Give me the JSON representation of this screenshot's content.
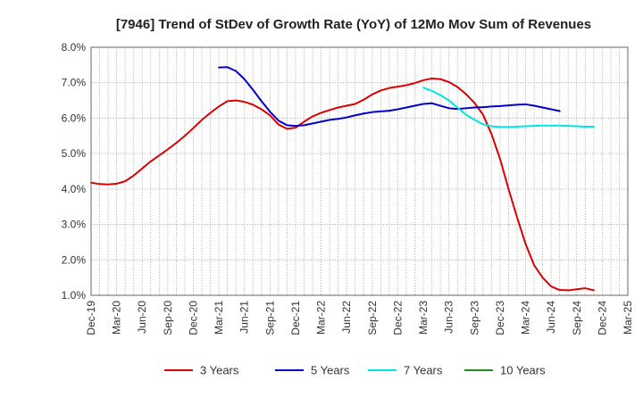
{
  "chart_data": {
    "type": "line",
    "title": "[7946]  Trend of StDev of Growth Rate (YoY) of 12Mo Mov Sum of Revenues",
    "xlabel": "",
    "ylabel": "",
    "ylim": [
      1.0,
      8.0
    ],
    "yticks": [
      "1.0%",
      "2.0%",
      "3.0%",
      "4.0%",
      "5.0%",
      "6.0%",
      "7.0%",
      "8.0%"
    ],
    "ytick_values": [
      1,
      2,
      3,
      4,
      5,
      6,
      7,
      8
    ],
    "xticks": [
      "Dec-19",
      "Mar-20",
      "Jun-20",
      "Sep-20",
      "Dec-20",
      "Mar-21",
      "Jun-21",
      "Sep-21",
      "Dec-21",
      "Mar-22",
      "Jun-22",
      "Sep-22",
      "Dec-22",
      "Mar-23",
      "Jun-23",
      "Sep-23",
      "Dec-23",
      "Mar-24",
      "Jun-24",
      "Sep-24",
      "Dec-24",
      "Mar-25"
    ],
    "x_count": 64,
    "grid": true,
    "legend_position": "bottom",
    "series": [
      {
        "name": "3 Years",
        "color": "#dd0000",
        "start": 0,
        "values": [
          4.18,
          4.14,
          4.13,
          4.15,
          4.22,
          4.38,
          4.58,
          4.78,
          4.95,
          5.12,
          5.3,
          5.5,
          5.72,
          5.95,
          6.15,
          6.33,
          6.48,
          6.5,
          6.46,
          6.38,
          6.25,
          6.08,
          5.82,
          5.7,
          5.73,
          5.9,
          6.05,
          6.15,
          6.23,
          6.3,
          6.35,
          6.4,
          6.52,
          6.67,
          6.78,
          6.85,
          6.89,
          6.93,
          6.99,
          7.07,
          7.12,
          7.1,
          7.02,
          6.88,
          6.68,
          6.43,
          6.1,
          5.55,
          4.85,
          4.0,
          3.2,
          2.45,
          1.85,
          1.5,
          1.25,
          1.15,
          1.14,
          1.17,
          1.2,
          1.14
        ]
      },
      {
        "name": "5 Years",
        "color": "#0000cc",
        "start": 15,
        "values": [
          7.43,
          7.44,
          7.33,
          7.1,
          6.8,
          6.48,
          6.18,
          5.93,
          5.8,
          5.78,
          5.8,
          5.85,
          5.9,
          5.95,
          5.98,
          6.02,
          6.08,
          6.13,
          6.17,
          6.19,
          6.21,
          6.25,
          6.3,
          6.35,
          6.4,
          6.42,
          6.35,
          6.28,
          6.26,
          6.28,
          6.3,
          6.31,
          6.33,
          6.34,
          6.36,
          6.38,
          6.39,
          6.35,
          6.3,
          6.25,
          6.2
        ]
      },
      {
        "name": "7 Years",
        "color": "#00e5e5",
        "start": 39,
        "values": [
          6.86,
          6.77,
          6.65,
          6.5,
          6.3,
          6.1,
          5.95,
          5.83,
          5.77,
          5.75,
          5.75,
          5.76,
          5.77,
          5.78,
          5.79,
          5.79,
          5.79,
          5.78,
          5.77,
          5.76,
          5.76
        ]
      },
      {
        "name": "10 Years",
        "color": "#228b22",
        "start": 0,
        "values": []
      }
    ]
  }
}
